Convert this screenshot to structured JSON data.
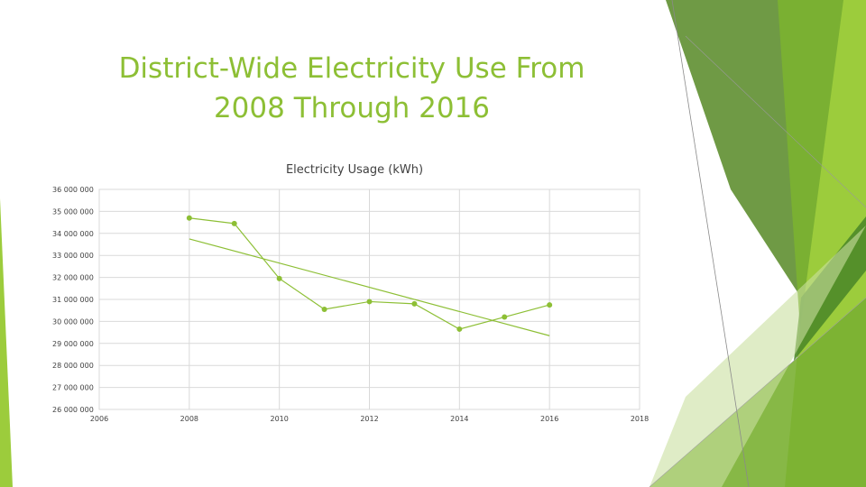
{
  "slide": {
    "title_line1": "District-Wide Electricity Use From",
    "title_line2": "2008 Through 2016"
  },
  "colors": {
    "title": "#8dbf35",
    "series": "#8dbf35",
    "trend": "#8dbf35",
    "grid": "#d9d9d9"
  },
  "chart_data": {
    "type": "scatter",
    "title": "Electricity Usage (kWh)",
    "xlabel": "",
    "ylabel": "",
    "xlim": [
      2006,
      2018
    ],
    "ylim": [
      26000000,
      36000000
    ],
    "x_ticks": [
      2006,
      2008,
      2010,
      2012,
      2014,
      2016,
      2018
    ],
    "x_tick_labels": [
      "2006",
      "2008",
      "2010",
      "2012",
      "2014",
      "2016",
      "2018"
    ],
    "y_ticks": [
      36000000,
      35000000,
      34000000,
      33000000,
      32000000,
      31000000,
      30000000,
      29000000,
      28000000,
      27000000,
      26000000
    ],
    "y_tick_labels": [
      "36 000 000",
      "35 000 000",
      "34 000 000",
      "33 000 000",
      "32 000 000",
      "31 000 000",
      "30 000 000",
      "29 000 000",
      "28 000 000",
      "27 000 000",
      "26 000 000"
    ],
    "grid": true,
    "series": [
      {
        "name": "Electricity Usage (kWh)",
        "x": [
          2008,
          2009,
          2010,
          2011,
          2012,
          2013,
          2014,
          2015,
          2016
        ],
        "values": [
          34700000,
          34450000,
          31950000,
          30550000,
          30900000,
          30800000,
          29650000,
          30200000,
          30750000
        ]
      }
    ],
    "trendline": {
      "type": "linear",
      "start": [
        2008,
        33750000
      ],
      "end": [
        2016,
        29350000
      ]
    }
  }
}
